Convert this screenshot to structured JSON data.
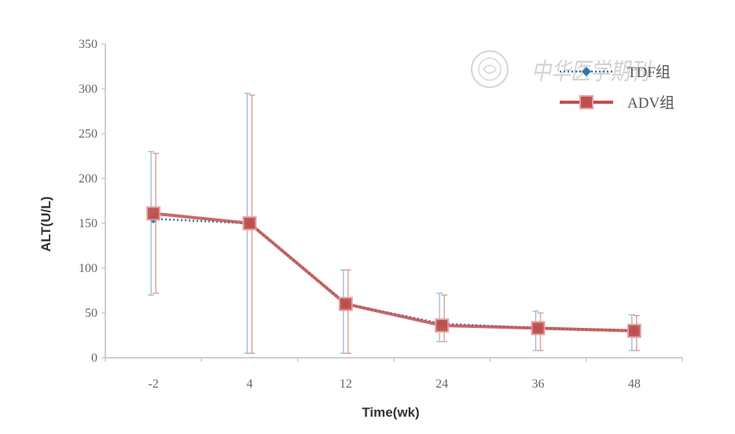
{
  "chart_data": {
    "type": "line",
    "xlabel": "Time(wk)",
    "ylabel": "ALT(U/L)",
    "categories": [
      "-2",
      "4",
      "12",
      "24",
      "36",
      "48"
    ],
    "ylim": [
      0,
      350
    ],
    "yticks": [
      "0",
      "50",
      "100",
      "150",
      "200",
      "250",
      "300",
      "350"
    ],
    "grid": false,
    "legend_position": "top-right",
    "series": [
      {
        "name": "TDF组",
        "color": "#2e75b6",
        "style": "dotted-diamond",
        "values": [
          155,
          150,
          60,
          38,
          33,
          30
        ],
        "error_upper": [
          230,
          295,
          98,
          72,
          52,
          48
        ],
        "error_lower": [
          70,
          5,
          5,
          18,
          8,
          8
        ]
      },
      {
        "name": "ADV组",
        "color": "#c0504d",
        "style": "solid-square",
        "values": [
          161,
          150,
          60,
          36,
          33,
          30
        ],
        "error_upper": [
          228,
          293,
          98,
          70,
          50,
          47
        ],
        "error_lower": [
          72,
          5,
          5,
          18,
          8,
          8
        ]
      }
    ],
    "watermark": "中华医学期刊"
  }
}
